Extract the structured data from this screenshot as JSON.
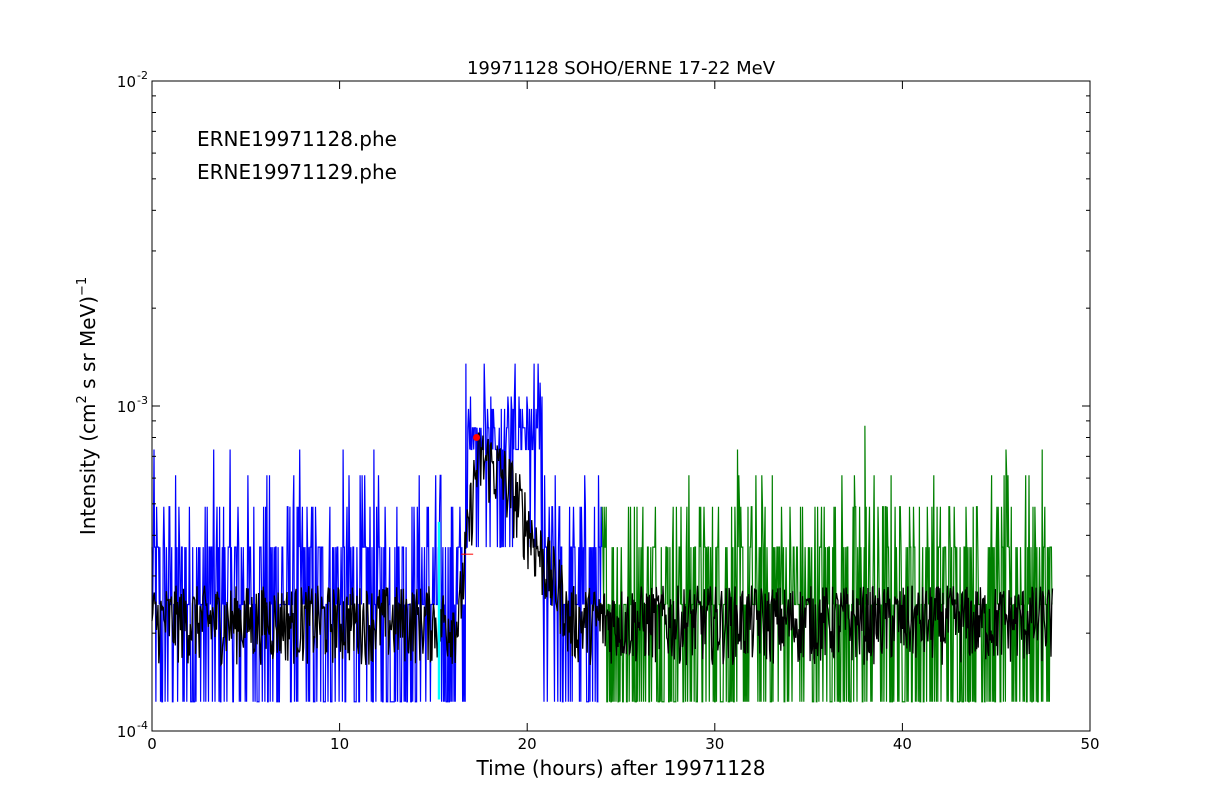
{
  "chart_data": {
    "type": "line",
    "title": "19971128 SOHO/ERNE 17-22 MeV",
    "xlabel": "Time (hours) after 19971128",
    "ylabel": {
      "main": "Intensity (cm",
      "sup1": "2",
      "mid": "  s sr MeV)",
      "sup2": "−1"
    },
    "xlim": [
      0,
      50
    ],
    "ylim": [
      0.0001,
      0.01
    ],
    "yscale": "log",
    "grid": false,
    "legend_position": "top-left",
    "x_ticks": [
      0,
      10,
      20,
      30,
      40,
      50
    ],
    "x_tick_labels": [
      "0",
      "10",
      "20",
      "30",
      "40",
      "50"
    ],
    "y_ticks": [
      {
        "value": 0.01,
        "base": "10",
        "exp": "-2"
      },
      {
        "value": 0.001,
        "base": "10",
        "exp": "-3"
      },
      {
        "value": 0.0001,
        "base": "10",
        "exp": "-4"
      }
    ],
    "series": [
      {
        "name": "ERNE19971128.phe",
        "color": "#0000ff",
        "x_range": [
          0,
          24.0
        ],
        "levels": [
          0.000123,
          0.000245,
          0.000368,
          0.00049,
          0.000612,
          0.000735
        ],
        "event": {
          "start": 16.7,
          "end": 20.8,
          "high_levels": [
            0.000735,
            0.000857,
            0.00098,
            0.00107,
            0.00118,
            0.00135
          ]
        }
      },
      {
        "name": "ERNE19971129.phe",
        "color": "#008000",
        "x_range": [
          24.0,
          48.0
        ],
        "levels": [
          0.000123,
          0.000245,
          0.000368,
          0.00049,
          0.000612,
          0.000735
        ],
        "spikes": [
          {
            "x": 38.0,
            "y": 0.00087
          }
        ]
      },
      {
        "color": "#000000",
        "description_role": "smoothed",
        "x_range": [
          0,
          48.0
        ],
        "baseline": 0.00022,
        "peak": {
          "x": 17.5,
          "y": 0.00068
        }
      }
    ],
    "markers": [
      {
        "x": 17.3,
        "y": 0.0008,
        "color": "#ff0000"
      },
      {
        "x": 15.3,
        "y": 0.00044,
        "color": "#00ffff",
        "to": 0.000125
      },
      {
        "x": 16.8,
        "y": 0.00035,
        "color": "#ff0000"
      }
    ]
  }
}
